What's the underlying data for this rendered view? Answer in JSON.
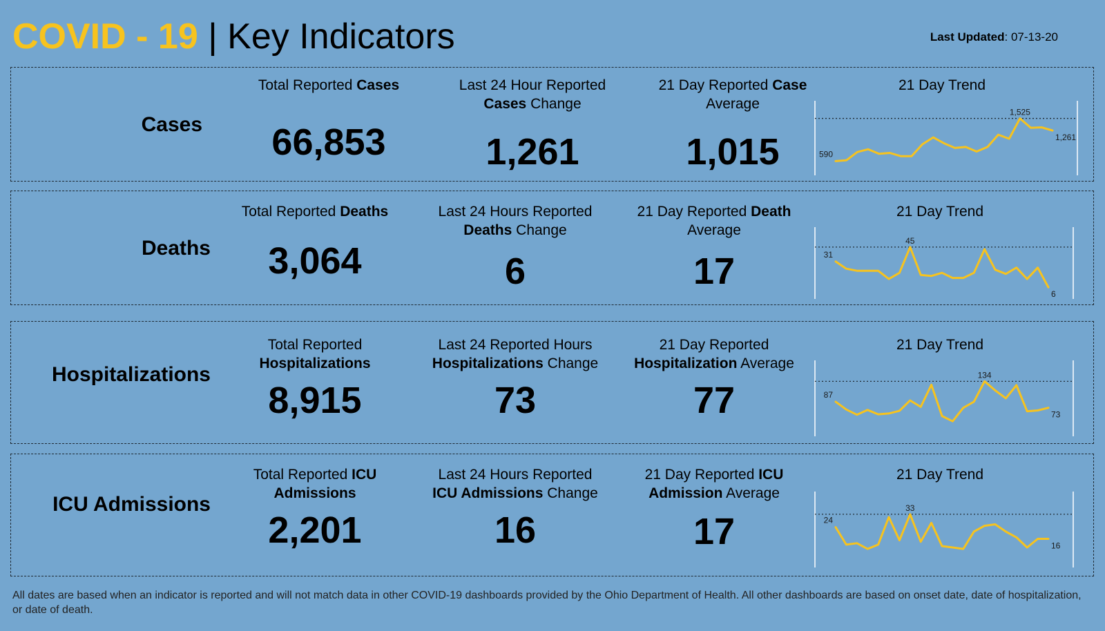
{
  "header": {
    "covid": "COVID - 19",
    "separator": "|",
    "title": "Key Indicators",
    "updated_label": "Last Updated",
    "updated_value": ": 07-13-20"
  },
  "colors": {
    "background": "#74a6cf",
    "accent": "#f7c31e",
    "line": "#f7c31e"
  },
  "panels": [
    {
      "label": "Cases",
      "total_pre": "Total Reported ",
      "total_bold": "Cases",
      "total_post": "",
      "total_value": "66,853",
      "change_l1": "Last 24 Hour Reported",
      "change_bold": "Cases",
      "change_post": " Change",
      "change_value": "1,261",
      "avg_pre": "21 Day Reported ",
      "avg_bold": "Case",
      "avg_l2": "Average",
      "avg_value": "1,015",
      "trend_title": "21 Day Trend"
    },
    {
      "label": "Deaths",
      "total_pre": "Total Reported ",
      "total_bold": "Deaths",
      "total_post": "",
      "total_value": "3,064",
      "change_l1": "Last 24 Hours Reported",
      "change_bold": "Deaths",
      "change_post": " Change",
      "change_value": "6",
      "avg_pre": "21 Day Reported ",
      "avg_bold": "Death",
      "avg_l2": "Average",
      "avg_value": "17",
      "trend_title": "21 Day Trend"
    },
    {
      "label": "Hospitalizations",
      "total_pre": "Total Reported",
      "total_bold": "Hospitalizations",
      "total_post": "",
      "total_value": "8,915",
      "change_l1": "Last 24 Reported Hours",
      "change_bold": "Hospitalizations",
      "change_post": " Change",
      "change_value": "73",
      "avg_pre": "21 Day Reported",
      "avg_bold": "Hospitalization",
      "avg_l2": " Average",
      "avg_value": "77",
      "trend_title": "21 Day Trend"
    },
    {
      "label": "ICU Admissions",
      "total_pre": "Total Reported ",
      "total_bold": "ICU",
      "total_post": "Admissions",
      "total_value": "2,201",
      "change_l1": "Last 24 Hours Reported",
      "change_bold": "ICU Admissions",
      "change_post": " Change",
      "change_value": "16",
      "avg_pre": "21 Day Reported ",
      "avg_bold": "ICU",
      "avg_l2": "Admission",
      "avg_l2_post": " Average",
      "avg_value": "17",
      "trend_title": "21 Day Trend"
    }
  ],
  "chart_data": [
    {
      "type": "line",
      "name": "cases-trend",
      "x": [
        1,
        2,
        3,
        4,
        5,
        6,
        7,
        8,
        9,
        10,
        11,
        12,
        13,
        14,
        15,
        16,
        17,
        18,
        19,
        20,
        21
      ],
      "values": [
        590,
        610,
        790,
        850,
        750,
        770,
        700,
        700,
        960,
        1110,
        980,
        880,
        900,
        800,
        900,
        1170,
        1080,
        1525,
        1320,
        1330,
        1261
      ],
      "ylim": [
        400,
        1700
      ],
      "labels": {
        "first": "590",
        "max": "1,525",
        "last": "1,261"
      },
      "reference_line": 1525
    },
    {
      "type": "line",
      "name": "deaths-trend",
      "x": [
        1,
        2,
        3,
        4,
        5,
        6,
        7,
        8,
        9,
        10,
        11,
        12,
        13,
        14,
        15,
        16,
        17,
        18,
        19,
        20,
        21
      ],
      "values": [
        31,
        24,
        22,
        22,
        22,
        14,
        20,
        45,
        18,
        17,
        20,
        15,
        15,
        20,
        43,
        23,
        19,
        25,
        14,
        25,
        6
      ],
      "ylim": [
        0,
        55
      ],
      "labels": {
        "first": "31",
        "max": "45",
        "last": "6"
      },
      "reference_line": 45
    },
    {
      "type": "line",
      "name": "hospitalizations-trend",
      "x": [
        1,
        2,
        3,
        4,
        5,
        6,
        7,
        8,
        9,
        10,
        11,
        12,
        13,
        14,
        15,
        16,
        17,
        18,
        19,
        20,
        21
      ],
      "values": [
        87,
        69,
        57,
        68,
        58,
        60,
        66,
        90,
        75,
        126,
        54,
        42,
        73,
        87,
        134,
        113,
        95,
        125,
        65,
        67,
        73
      ],
      "ylim": [
        20,
        160
      ],
      "labels": {
        "first": "87",
        "max": "134",
        "last": "73"
      },
      "reference_line": 134
    },
    {
      "type": "line",
      "name": "icu-trend",
      "x": [
        1,
        2,
        3,
        4,
        5,
        6,
        7,
        8,
        9,
        10,
        11,
        12,
        13,
        14,
        15,
        16,
        17,
        18,
        19,
        20,
        21
      ],
      "values": [
        24,
        12,
        13,
        9,
        12,
        31,
        15,
        33,
        14,
        27,
        11,
        10,
        9,
        21,
        25,
        26,
        21,
        17,
        10,
        16,
        16
      ],
      "ylim": [
        0,
        42
      ],
      "labels": {
        "first": "24",
        "max": "33",
        "last": "16"
      },
      "reference_line": 33
    }
  ],
  "footnote": "All dates are based when an indicator is reported and will not match data in other COVID-19 dashboards provided by the Ohio Department of Health. All other dashboards are based on onset date, date of hospitalization, or date of death."
}
